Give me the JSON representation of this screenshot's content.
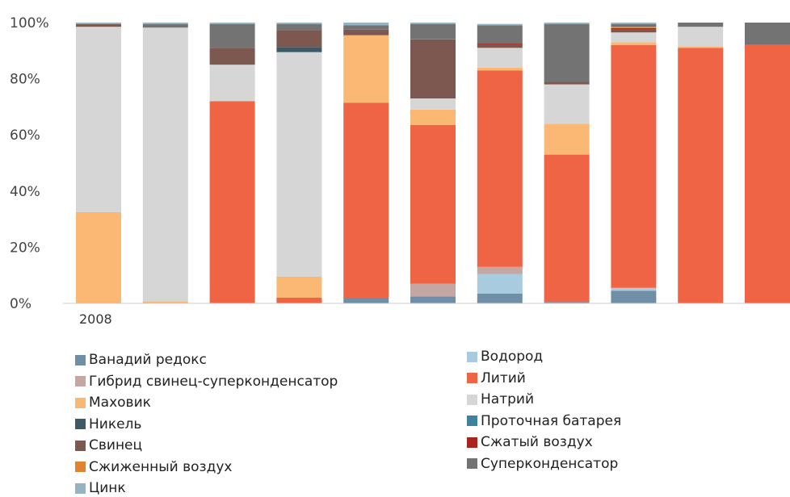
{
  "chart_data": {
    "type": "bar",
    "stacked": true,
    "categories": [
      "2008",
      "",
      "",
      "",
      "",
      "",
      "",
      "",
      "",
      "",
      "",
      ""
    ],
    "ylim": [
      0,
      100
    ],
    "yticks": [
      "0%",
      "20%",
      "40%",
      "60%",
      "80%",
      "100%"
    ],
    "grid": false,
    "legend_position": "bottom",
    "series": [
      {
        "name": "Ванадий редокс",
        "color": "#6E8FA6",
        "values": [
          0,
          0,
          0,
          0,
          2,
          2.5,
          3.5,
          0.5,
          4.5,
          0,
          0,
          0
        ]
      },
      {
        "name": "Водород",
        "color": "#A8CBDD",
        "values": [
          0,
          0,
          0,
          0,
          0,
          0,
          7,
          0,
          1,
          0,
          0,
          0
        ]
      },
      {
        "name": "Гибрид свинец-суперконденсатор",
        "color": "#C4A7A2",
        "values": [
          0,
          0,
          0,
          0,
          0,
          4.5,
          2.5,
          0,
          0,
          0,
          0,
          0
        ]
      },
      {
        "name": "Литий",
        "color": "#F06446",
        "values": [
          0,
          0,
          72,
          2,
          69.5,
          56.5,
          70,
          52.5,
          86.5,
          91,
          92,
          0
        ]
      },
      {
        "name": "Маховик",
        "color": "#FAB874",
        "values": [
          32.5,
          0.7,
          0,
          7.5,
          24,
          5.5,
          1,
          11,
          1,
          0.5,
          0,
          0
        ]
      },
      {
        "name": "Натрий",
        "color": "#D6D6D6",
        "values": [
          66,
          97.5,
          13,
          80,
          0,
          4,
          7,
          14,
          3.5,
          7,
          0,
          0
        ]
      },
      {
        "name": "Никель",
        "color": "#3E5A69",
        "values": [
          0,
          0,
          0,
          1.8,
          0,
          0,
          0,
          0,
          0,
          0,
          0,
          0
        ]
      },
      {
        "name": "Проточная батарея",
        "color": "#3F82A0",
        "values": [
          0,
          0,
          0,
          0,
          0,
          0,
          0,
          0,
          0,
          0,
          0,
          0
        ]
      },
      {
        "name": "Свинец",
        "color": "#7C5850",
        "values": [
          1,
          0,
          6,
          6,
          2,
          21,
          1,
          1,
          1,
          0,
          0,
          0
        ]
      },
      {
        "name": "Сжатый воздух",
        "color": "#A8241C",
        "values": [
          0,
          0,
          0,
          0,
          0,
          0,
          0.5,
          0,
          0.5,
          0,
          0,
          0
        ]
      },
      {
        "name": "Сжиженный воздух",
        "color": "#E0822E",
        "values": [
          0,
          0,
          0,
          0,
          0,
          0,
          0,
          0,
          0.5,
          0,
          0,
          0
        ]
      },
      {
        "name": "Суперконденсатор",
        "color": "#737373",
        "values": [
          0,
          1.3,
          8.5,
          2.2,
          1.5,
          5.5,
          6.5,
          20.5,
          1,
          1.5,
          8,
          0
        ]
      },
      {
        "name": "Цинк",
        "color": "#94B4C4",
        "values": [
          0.5,
          0.5,
          0.5,
          0.5,
          1,
          0.5,
          0.5,
          0.5,
          0.5,
          0,
          0,
          0
        ]
      }
    ]
  }
}
